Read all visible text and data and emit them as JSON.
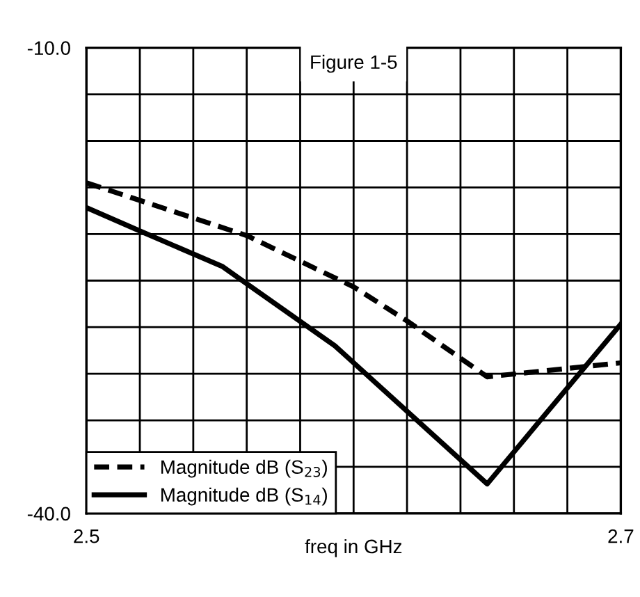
{
  "chart_data": {
    "type": "line",
    "title": "Figure 1-5",
    "xlabel": "freq in GHz",
    "xlim": [
      2.5,
      2.7
    ],
    "ylim": [
      -40,
      -10
    ],
    "xticks": [
      {
        "value": 2.5,
        "label": "2.5"
      },
      {
        "value": 2.52,
        "label": null
      },
      {
        "value": 2.54,
        "label": null
      },
      {
        "value": 2.56,
        "label": null
      },
      {
        "value": 2.58,
        "label": null
      },
      {
        "value": 2.6,
        "label": null
      },
      {
        "value": 2.62,
        "label": null
      },
      {
        "value": 2.64,
        "label": null
      },
      {
        "value": 2.66,
        "label": null
      },
      {
        "value": 2.68,
        "label": null
      },
      {
        "value": 2.7,
        "label": "2.7"
      }
    ],
    "yticks": [
      {
        "value": -40,
        "label": "-40.0"
      },
      {
        "value": -37,
        "label": null
      },
      {
        "value": -34,
        "label": null
      },
      {
        "value": -31,
        "label": null
      },
      {
        "value": -28,
        "label": null
      },
      {
        "value": -25,
        "label": null
      },
      {
        "value": -22,
        "label": null
      },
      {
        "value": -19,
        "label": null
      },
      {
        "value": -16,
        "label": null
      },
      {
        "value": -13,
        "label": null
      },
      {
        "value": -10,
        "label": "-10.0"
      }
    ],
    "grid": true,
    "legend": "bottom left",
    "marker": "none",
    "series": [
      {
        "name": "Magnitude dB (S$_{23}$)",
        "color": "#000000",
        "line_style": "dashed",
        "x": [
          2.5,
          2.56,
          2.6,
          2.62,
          2.65,
          2.7
        ],
        "values": [
          -18.7,
          -22.1,
          -25.4,
          -27.6,
          -31.2,
          -30.3
        ]
      },
      {
        "name": "Magnitude dB (S$_{14}$)",
        "color": "#000000",
        "line_style": "solid",
        "x": [
          2.5,
          2.52,
          2.551,
          2.56,
          2.593,
          2.65,
          2.7
        ],
        "values": [
          -20.3,
          -21.8,
          -24.1,
          -25.2,
          -29.2,
          -38.1,
          -27.8
        ]
      }
    ]
  }
}
